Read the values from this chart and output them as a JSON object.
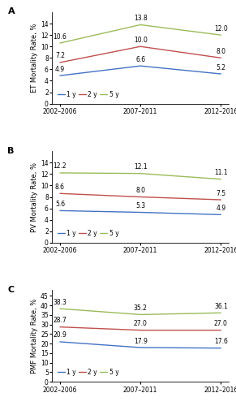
{
  "x_labels": [
    "2002–2006",
    "2007–2011",
    "2012–2016"
  ],
  "panels": [
    {
      "label": "A",
      "ylabel": "ET Mortality Rate, %",
      "ylim": [
        0,
        16
      ],
      "yticks": [
        0,
        2,
        4,
        6,
        8,
        10,
        12,
        14
      ],
      "series": {
        "1 y": [
          4.9,
          6.6,
          5.2
        ],
        "2 y": [
          7.2,
          10.0,
          8.0
        ],
        "5 y": [
          10.6,
          13.8,
          12.0
        ]
      }
    },
    {
      "label": "B",
      "ylabel": "PV Mortality Rate, %",
      "ylim": [
        0,
        16
      ],
      "yticks": [
        0,
        2,
        4,
        6,
        8,
        10,
        12,
        14
      ],
      "series": {
        "1 y": [
          5.6,
          5.3,
          4.9
        ],
        "2 y": [
          8.6,
          8.0,
          7.5
        ],
        "5 y": [
          12.2,
          12.1,
          11.1
        ]
      }
    },
    {
      "label": "C",
      "ylabel": "PMF Mortality Rate, %",
      "ylim": [
        0,
        48
      ],
      "yticks": [
        0,
        5,
        10,
        15,
        20,
        25,
        30,
        35,
        40,
        45
      ],
      "series": {
        "1 y": [
          20.9,
          17.9,
          17.6
        ],
        "2 y": [
          28.7,
          27.0,
          27.0
        ],
        "5 y": [
          38.3,
          35.2,
          36.1
        ]
      }
    }
  ],
  "colors": {
    "1 y": "#4472C4",
    "2 y": "#C0504D",
    "5 y": "#9BBB59"
  },
  "x_positions": [
    0,
    1,
    2
  ],
  "fontsize_ylabel": 6.0,
  "fontsize_tick": 5.5,
  "fontsize_annot": 5.5,
  "fontsize_legend": 5.5,
  "fontsize_panel_label": 8.0
}
